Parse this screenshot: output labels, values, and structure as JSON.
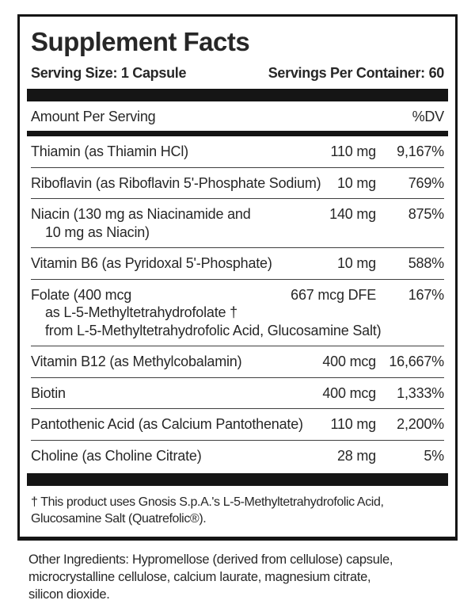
{
  "panel": {
    "title": "Supplement Facts",
    "serving_size": "Serving Size: 1 Capsule",
    "servings_per_container": "Servings Per Container: 60",
    "header": {
      "amount_label": "Amount Per Serving",
      "dv_label": "%DV"
    },
    "rows": [
      {
        "name_lines": [
          "Thiamin (as Thiamin HCl)"
        ],
        "amount": "110 mg",
        "dv": "9,167%"
      },
      {
        "name_lines": [
          "Riboflavin (as Riboflavin 5'-Phosphate Sodium)"
        ],
        "amount": "10 mg",
        "dv": "769%"
      },
      {
        "name_lines": [
          "Niacin (130 mg as Niacinamide and",
          "10 mg as Niacin)"
        ],
        "amount": "140 mg",
        "dv": "875%"
      },
      {
        "name_lines": [
          "Vitamin B6 (as Pyridoxal 5'-Phosphate)"
        ],
        "amount": "10 mg",
        "dv": "588%"
      },
      {
        "name_lines": [
          "Folate (400 mcg",
          "as L-5-Methyltetrahydrofolate †",
          "from L-5-Methyltetrahydrofolic Acid, Glucosamine Salt)"
        ],
        "amount": "667 mcg DFE",
        "dv": "167%"
      },
      {
        "name_lines": [
          "Vitamin B12 (as Methylcobalamin)"
        ],
        "amount": "400 mcg",
        "dv": "16,667%"
      },
      {
        "name_lines": [
          "Biotin"
        ],
        "amount": "400 mcg",
        "dv": "1,333%"
      },
      {
        "name_lines": [
          "Pantothenic Acid (as Calcium Pantothenate)"
        ],
        "amount": "110 mg",
        "dv": "2,200%"
      },
      {
        "name_lines": [
          "Choline (as Choline Citrate)"
        ],
        "amount": "28 mg",
        "dv": "5%"
      }
    ],
    "footnote_lines": [
      "† This product uses Gnosis S.p.A.'s L-5-Methyltetrahydrofolic Acid,",
      "Glucosamine Salt (Quatrefolic®)."
    ]
  },
  "other_ingredients_lines": [
    "Other Ingredients: Hypromellose (derived from cellulose) capsule,",
    "microcrystalline cellulose, calcium laurate, magnesium citrate,",
    "silicon dioxide."
  ],
  "colors": {
    "ink": "#272727",
    "bar": "#151515",
    "separator": "#3f3f3f",
    "background": "#ffffff"
  }
}
